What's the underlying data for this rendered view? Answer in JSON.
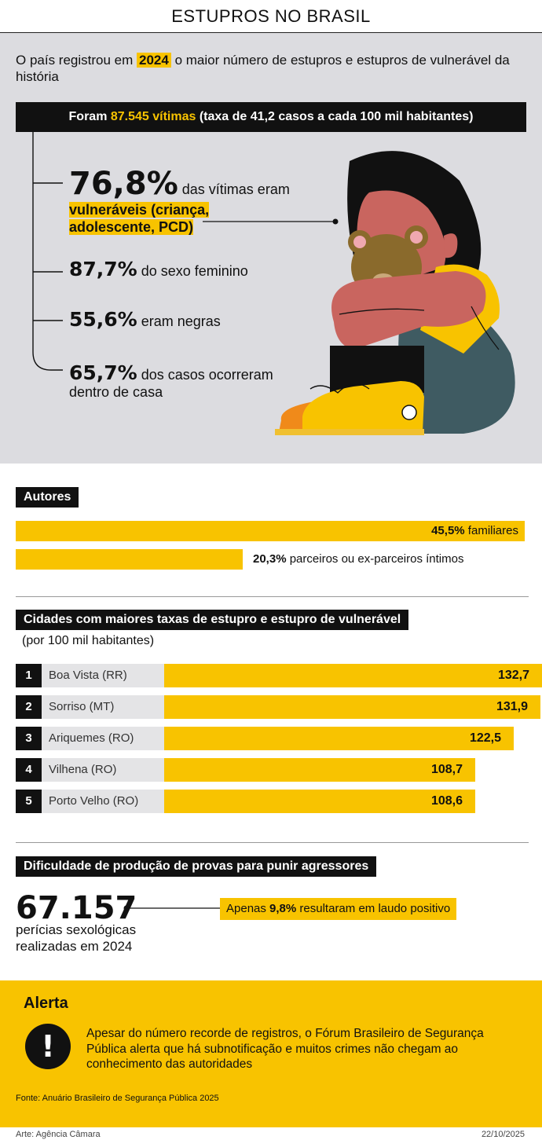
{
  "title": "ESTUPROS NO BRASIL",
  "intro": {
    "before": "O país registrou em ",
    "year": "2024",
    "after": " o maior número de estupros e estupros de vulnerável da história"
  },
  "banner": {
    "before": "Foram ",
    "victims": "87.545 vítimas",
    "after": " (taxa de 41,2 casos a cada 100 mil habitantes)"
  },
  "stats": [
    {
      "pct": "76,8%",
      "text": " das vítimas eram",
      "highlight_line1": "vulneráveis (criança,",
      "highlight_line2": "adolescente, PCD)"
    },
    {
      "pct": "87,7%",
      "text": " do sexo feminino"
    },
    {
      "pct": "55,6%",
      "text": " eram negras"
    },
    {
      "pct": "65,7%",
      "text": " dos casos ocorreram",
      "text2": "dentro de casa"
    }
  ],
  "autores": {
    "label": "Autores",
    "items": [
      {
        "pct": "45,5%",
        "text": " familiares",
        "value": 45.5
      },
      {
        "pct": "20,3%",
        "text": " parceiros ou ex-parceiros íntimos",
        "value": 20.3
      }
    ]
  },
  "cidades": {
    "label": "Cidades com maiores taxas de estupro e estupro de vulnerável",
    "sub": "(por 100 mil habitantes)",
    "rows": [
      {
        "rank": "1",
        "city": "Boa Vista (RR)",
        "value": 132.7,
        "value_label": "132,7"
      },
      {
        "rank": "2",
        "city": "Sorriso (MT)",
        "value": 131.9,
        "value_label": "131,9"
      },
      {
        "rank": "3",
        "city": "Ariquemes (RO)",
        "value": 122.5,
        "value_label": "122,5"
      },
      {
        "rank": "4",
        "city": "Vilhena (RO)",
        "value": 108.7,
        "value_label": "108,7"
      },
      {
        "rank": "5",
        "city": "Porto Velho (RO)",
        "value": 108.6,
        "value_label": "108,6"
      }
    ]
  },
  "provas": {
    "label": "Dificuldade de produção de provas para punir agressores",
    "number": "67.157",
    "line1": "perícias sexológicas",
    "line2": "realizadas em 2024",
    "callout_before": "Apenas ",
    "callout_pct": "9,8%",
    "callout_after": " resultaram em laudo positivo"
  },
  "alerta": {
    "title": "Alerta",
    "icon": "exclamation-icon",
    "text": "Apesar do número recorde de registros, o Fórum Brasileiro de Segurança Pública alerta que há subnotificação e muitos crimes não chegam ao conhecimento das autoridades",
    "fonte": "Fonte: Anuário Brasileiro de Segurança Pública 2025"
  },
  "footer": {
    "arte": "Arte: Agência Câmara",
    "date": "22/10/2025"
  },
  "colors": {
    "accent": "#f8c300",
    "dark": "#111111",
    "panel": "#dcdce0"
  }
}
